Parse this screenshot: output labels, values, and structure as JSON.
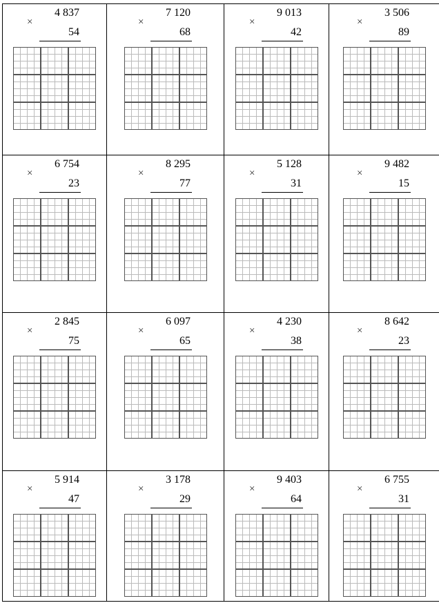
{
  "operator": "×",
  "problems": [
    {
      "a": "4 837",
      "b": "54"
    },
    {
      "a": "7 120",
      "b": "68"
    },
    {
      "a": "9 013",
      "b": "42"
    },
    {
      "a": "3 506",
      "b": "89"
    },
    {
      "a": "6 754",
      "b": "23"
    },
    {
      "a": "8 295",
      "b": "77"
    },
    {
      "a": "5 128",
      "b": "31"
    },
    {
      "a": "9 482",
      "b": "15"
    },
    {
      "a": "2 845",
      "b": "75"
    },
    {
      "a": "6 097",
      "b": "65"
    },
    {
      "a": "4 230",
      "b": "38"
    },
    {
      "a": "8 642",
      "b": "23"
    },
    {
      "a": "5 914",
      "b": "47"
    },
    {
      "a": "3 178",
      "b": "29"
    },
    {
      "a": "9 403",
      "b": "64"
    },
    {
      "a": "6 755",
      "b": "31"
    }
  ]
}
